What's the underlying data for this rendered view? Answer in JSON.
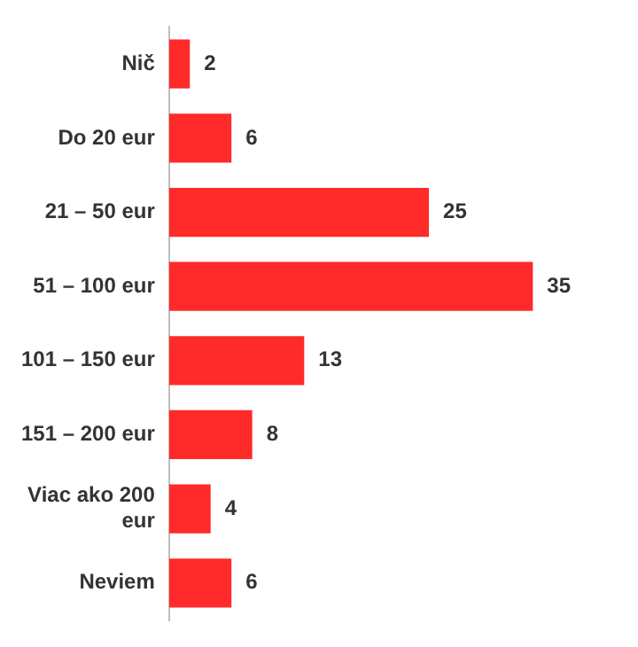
{
  "chart_data": {
    "type": "bar",
    "orientation": "horizontal",
    "categories": [
      "Nič",
      "Do 20 eur",
      "21 – 50 eur",
      "51 – 100 eur",
      "101 – 150 eur",
      "151 – 200 eur",
      "Viac ako 200 eur",
      "Neviem"
    ],
    "values": [
      2,
      6,
      25,
      35,
      13,
      8,
      4,
      6
    ],
    "color": "#ff2a2a",
    "data_labels": true,
    "legend": false
  }
}
